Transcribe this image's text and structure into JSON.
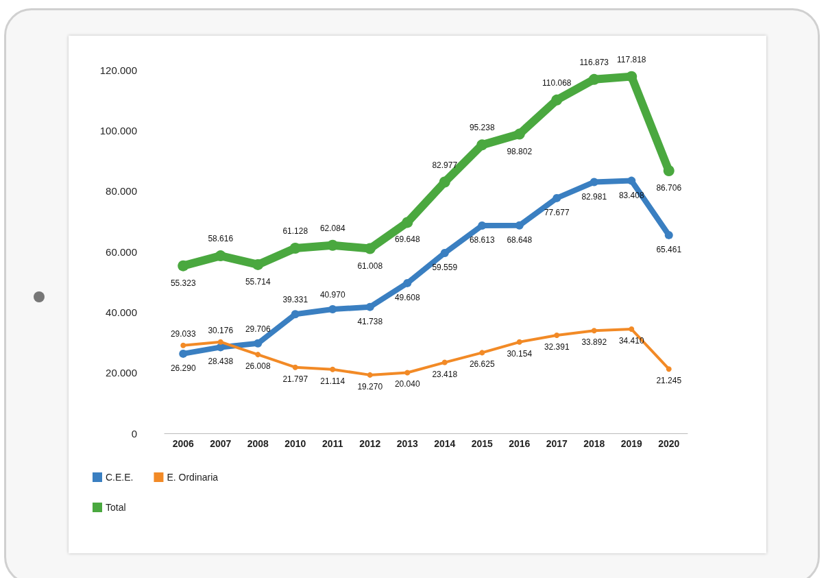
{
  "chart_data": {
    "type": "line",
    "categories": [
      "2006",
      "2007",
      "2008",
      "2010",
      "2011",
      "2012",
      "2013",
      "2014",
      "2015",
      "2016",
      "2017",
      "2018",
      "2019",
      "2020"
    ],
    "series": [
      {
        "name": "C.E.E.",
        "color": "#3a7fc1",
        "values": [
          26290,
          28438,
          29706,
          39331,
          40970,
          41738,
          49608,
          59559,
          68613,
          68648,
          77677,
          82981,
          83408,
          65461
        ],
        "value_labels": [
          "26.290",
          "28.438",
          "29.706",
          "39.331",
          "40.970",
          "41.738",
          "49.608",
          "59.559",
          "68.613",
          "68.648",
          "77.677",
          "82.981",
          "83.408",
          "65.461"
        ]
      },
      {
        "name": "E. Ordinaria",
        "color": "#f28a26",
        "values": [
          29033,
          30176,
          26008,
          21797,
          21114,
          19270,
          20040,
          23418,
          26625,
          30154,
          32391,
          33892,
          34410,
          21245
        ],
        "value_labels": [
          "29.033",
          "30.176",
          "26.008",
          "21.797",
          "21.114",
          "19.270",
          "20.040",
          "23.418",
          "26.625",
          "30.154",
          "32.391",
          "33.892",
          "34.410",
          "21.245"
        ]
      },
      {
        "name": "Total",
        "color": "#4aa83f",
        "values": [
          55323,
          58616,
          55714,
          61128,
          62084,
          61008,
          69648,
          82977,
          95238,
          98802,
          110068,
          116873,
          117818,
          86706
        ],
        "value_labels": [
          "55.323",
          "58.616",
          "55.714",
          "61.128",
          "62.084",
          "61.008",
          "69.648",
          "82.977",
          "95.238",
          "98.802",
          "110.068",
          "116.873",
          "117.818",
          "86.706"
        ]
      }
    ],
    "ylim": [
      0,
      120000
    ],
    "yticks": [
      {
        "value": 0,
        "label": "0"
      },
      {
        "value": 20000,
        "label": "20.000"
      },
      {
        "value": 40000,
        "label": "40.000"
      },
      {
        "value": 60000,
        "label": "60.000"
      },
      {
        "value": 80000,
        "label": "80.000"
      },
      {
        "value": 100000,
        "label": "100.000"
      },
      {
        "value": 120000,
        "label": "120.000"
      }
    ],
    "grid": false,
    "legend": "bottom left",
    "marker": "circle",
    "line_style": "solid"
  }
}
